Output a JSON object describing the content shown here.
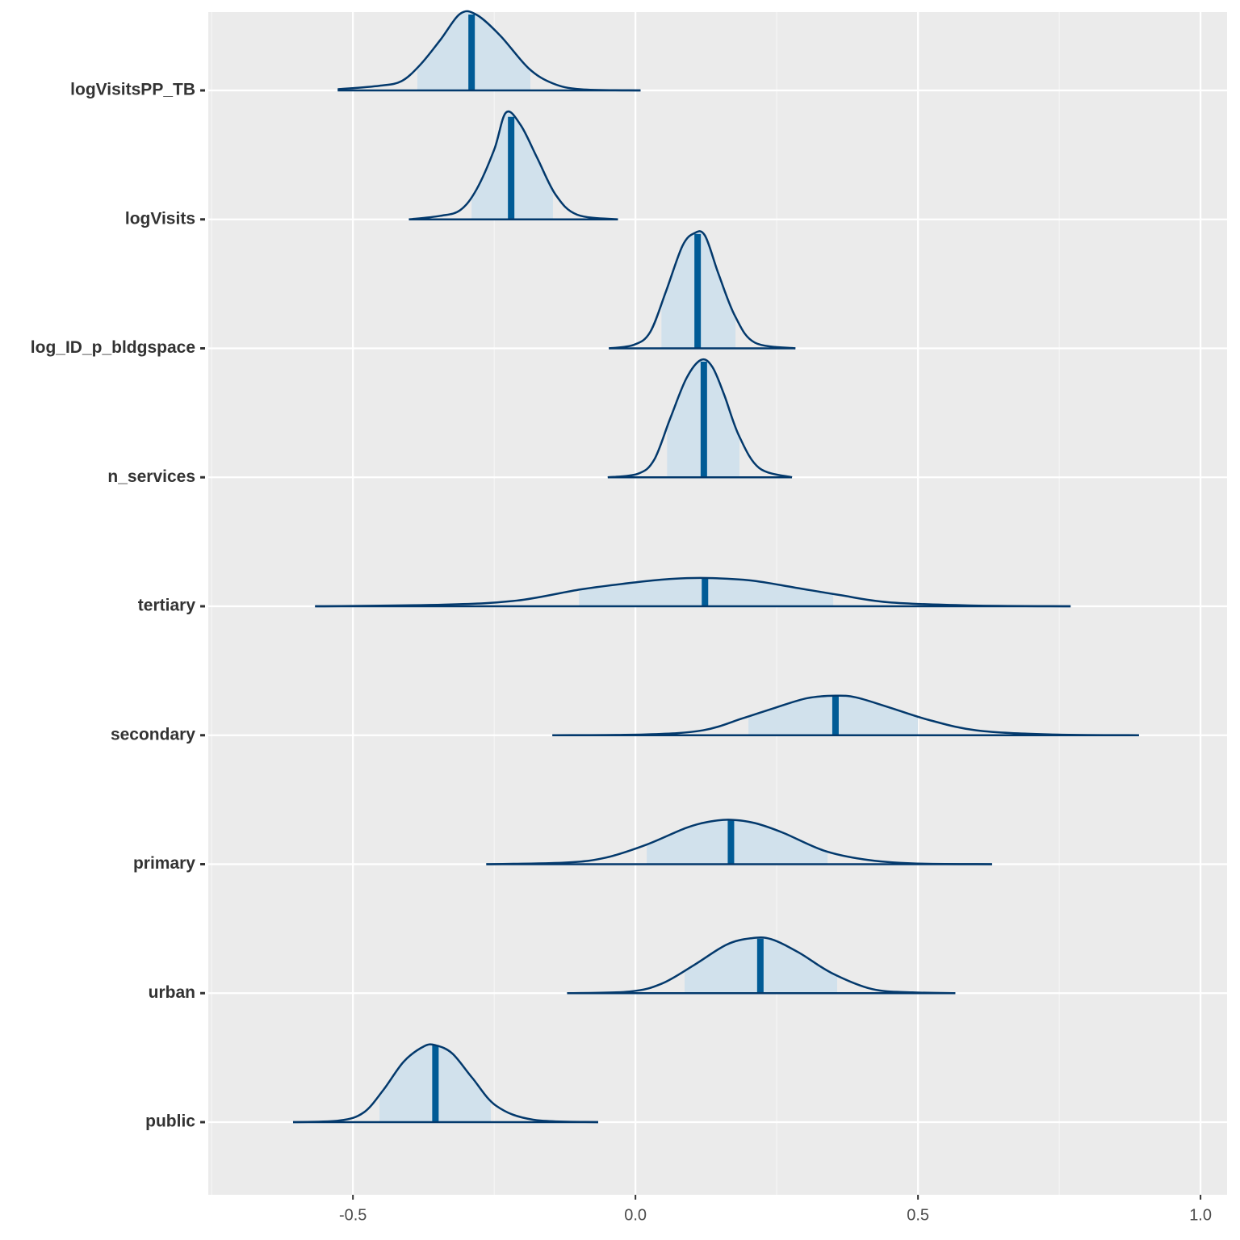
{
  "chart_data": {
    "type": "ridgeline",
    "categories": [
      "logVisitsPP_TB",
      "logVisits",
      "log_ID_p_bldgspace",
      "n_services",
      "tertiary",
      "secondary",
      "primary",
      "urban",
      "public"
    ],
    "series": [
      {
        "name": "logVisitsPP_TB",
        "median": -0.29,
        "interval": [
          -0.386,
          -0.186
        ],
        "x": [
          -0.527,
          -0.453,
          -0.414,
          -0.381,
          -0.346,
          -0.31,
          -0.281,
          -0.239,
          -0.189,
          -0.146,
          -0.096,
          0.009
        ],
        "density": [
          0.1,
          0.4,
          0.8,
          2.2,
          4.3,
          6.6,
          6.5,
          4.7,
          1.9,
          0.6,
          0.1,
          0
        ]
      },
      {
        "name": "logVisits",
        "median": -0.22,
        "interval": [
          -0.29,
          -0.146
        ],
        "x": [
          -0.401,
          -0.346,
          -0.31,
          -0.281,
          -0.25,
          -0.229,
          -0.203,
          -0.174,
          -0.141,
          -0.103,
          -0.031
        ],
        "density": [
          0,
          0.3,
          0.8,
          2.6,
          6.0,
          9.2,
          8.1,
          5.3,
          2.1,
          0.4,
          0
        ]
      },
      {
        "name": "log_ID_p_bldgspace",
        "median": 0.11,
        "interval": [
          0.046,
          0.177
        ],
        "x": [
          -0.047,
          -0.003,
          0.026,
          0.054,
          0.083,
          0.104,
          0.123,
          0.147,
          0.176,
          0.211,
          0.283
        ],
        "density": [
          0,
          0.3,
          1.4,
          4.9,
          8.8,
          9.9,
          9.7,
          6.4,
          2.8,
          0.5,
          0
        ]
      },
      {
        "name": "n_services",
        "median": 0.121,
        "interval": [
          0.056,
          0.184
        ],
        "x": [
          -0.049,
          0.004,
          0.033,
          0.061,
          0.09,
          0.116,
          0.136,
          0.157,
          0.183,
          0.219,
          0.277
        ],
        "density": [
          0,
          0.3,
          1.5,
          5.0,
          8.5,
          10.1,
          9.5,
          7.1,
          3.6,
          0.8,
          0
        ]
      },
      {
        "name": "tertiary",
        "median": 0.123,
        "interval": [
          -0.1,
          0.35
        ],
        "x": [
          -0.567,
          -0.339,
          -0.21,
          -0.096,
          0.004,
          0.066,
          0.126,
          0.204,
          0.283,
          0.361,
          0.447,
          0.59,
          0.77
        ],
        "density": [
          0,
          0.14,
          0.49,
          1.46,
          2.08,
          2.36,
          2.43,
          2.22,
          1.6,
          0.97,
          0.35,
          0.07,
          0
        ]
      },
      {
        "name": "secondary",
        "median": 0.354,
        "interval": [
          0.2,
          0.5
        ],
        "x": [
          -0.147,
          0.019,
          0.119,
          0.19,
          0.247,
          0.304,
          0.354,
          0.39,
          0.447,
          0.519,
          0.604,
          0.733,
          0.891
        ],
        "density": [
          0,
          0.07,
          0.42,
          1.46,
          2.36,
          3.19,
          3.4,
          3.26,
          2.43,
          1.32,
          0.42,
          0.07,
          0
        ]
      },
      {
        "name": "primary",
        "median": 0.169,
        "interval": [
          0.02,
          0.34
        ],
        "x": [
          -0.264,
          -0.124,
          -0.053,
          0.019,
          0.09,
          0.133,
          0.169,
          0.211,
          0.261,
          0.333,
          0.404,
          0.49,
          0.631
        ],
        "density": [
          0,
          0.14,
          0.56,
          1.67,
          3.13,
          3.68,
          3.82,
          3.54,
          2.71,
          1.18,
          0.42,
          0.07,
          0
        ]
      },
      {
        "name": "urban",
        "median": 0.221,
        "interval": [
          0.087,
          0.357
        ],
        "x": [
          -0.121,
          -0.01,
          0.047,
          0.104,
          0.161,
          0.204,
          0.24,
          0.29,
          0.347,
          0.419,
          0.49,
          0.566
        ],
        "density": [
          0,
          0.14,
          0.83,
          2.43,
          4.17,
          4.72,
          4.65,
          3.47,
          1.74,
          0.35,
          0.07,
          0
        ]
      },
      {
        "name": "public",
        "median": -0.354,
        "interval": [
          -0.453,
          -0.256
        ],
        "x": [
          -0.606,
          -0.524,
          -0.481,
          -0.446,
          -0.41,
          -0.374,
          -0.353,
          -0.324,
          -0.289,
          -0.246,
          -0.181,
          -0.066
        ],
        "density": [
          0,
          0.14,
          0.83,
          2.78,
          5.21,
          6.53,
          6.6,
          5.9,
          3.82,
          1.39,
          0.21,
          0
        ]
      }
    ],
    "xlim": [
      -0.756,
      1.047
    ],
    "xticks": [
      -0.5,
      {
        "value": 0,
        "label": "0.0"
      },
      0.5,
      {
        "value": 1,
        "label": "1.0"
      }
    ],
    "grid": true,
    "line_color": "#03396c",
    "median_color": "#005b96",
    "fill_color": "#d1e1ec",
    "background": "#ebebeb"
  }
}
